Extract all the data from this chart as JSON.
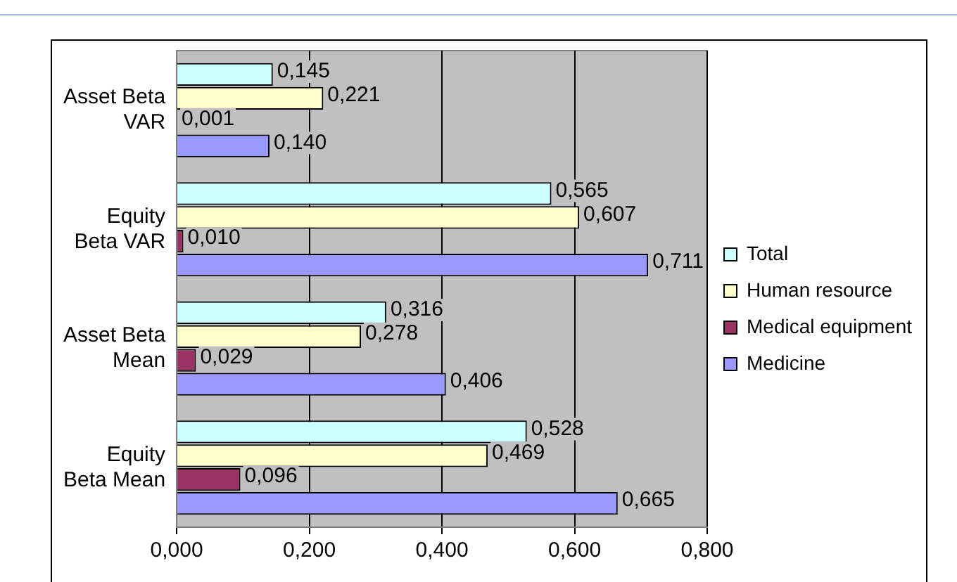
{
  "chart_data": {
    "type": "bar",
    "orientation": "horizontal",
    "categories": [
      "Asset Beta VAR",
      "Equity Beta VAR",
      "Asset Beta Mean",
      "Equity Beta Mean"
    ],
    "series": [
      {
        "name": "Total",
        "color": "#ccffff",
        "values": [
          0.145,
          0.565,
          0.316,
          0.528
        ],
        "value_labels": [
          "0,145",
          "0,565",
          "0,316",
          "0,528"
        ]
      },
      {
        "name": "Human resource",
        "color": "#ffffcc",
        "values": [
          0.221,
          0.607,
          0.278,
          0.469
        ],
        "value_labels": [
          "0,221",
          "0,607",
          "0,278",
          "0,469"
        ]
      },
      {
        "name": "Medical equipment",
        "color": "#993366",
        "values": [
          0.001,
          0.01,
          0.029,
          0.096
        ],
        "value_labels": [
          "0,001",
          "0,010",
          "0,029",
          "0,096"
        ]
      },
      {
        "name": "Medicine",
        "color": "#9999ff",
        "values": [
          0.14,
          0.711,
          0.406,
          0.665
        ],
        "value_labels": [
          "0,140",
          "0,711",
          "0,406",
          "0,665"
        ]
      }
    ],
    "xlim": [
      0,
      0.8
    ],
    "xticks": [
      {
        "value": 0,
        "label": "0,000"
      },
      {
        "value": 0.2,
        "label": "0,200"
      },
      {
        "value": 0.4,
        "label": "0,400"
      },
      {
        "value": 0.6,
        "label": "0,600"
      },
      {
        "value": 0.8,
        "label": "0,800"
      }
    ],
    "grid": "x",
    "legend": "right"
  }
}
